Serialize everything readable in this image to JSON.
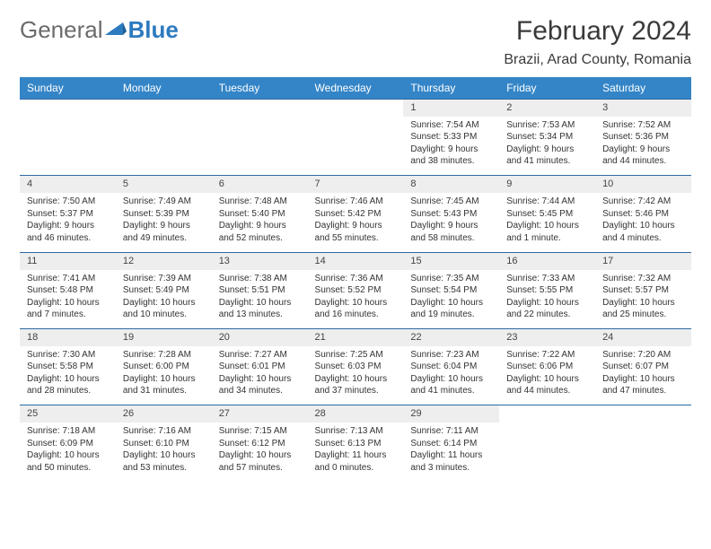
{
  "logo": {
    "part1": "General",
    "part2": "Blue"
  },
  "title": "February 2024",
  "subtitle": "Brazii, Arad County, Romania",
  "colors": {
    "header_bg": "#3485c7",
    "header_text": "#ffffff",
    "daynum_bg": "#eeeeee",
    "border": "#2d6aa3",
    "body_text": "#333333",
    "logo_gray": "#6b6b6b",
    "logo_blue": "#2d7bbf"
  },
  "weekdays": [
    "Sunday",
    "Monday",
    "Tuesday",
    "Wednesday",
    "Thursday",
    "Friday",
    "Saturday"
  ],
  "weeks": [
    {
      "nums": [
        "",
        "",
        "",
        "",
        "1",
        "2",
        "3"
      ],
      "cells": [
        [],
        [],
        [],
        [],
        [
          "Sunrise: 7:54 AM",
          "Sunset: 5:33 PM",
          "Daylight: 9 hours",
          "and 38 minutes."
        ],
        [
          "Sunrise: 7:53 AM",
          "Sunset: 5:34 PM",
          "Daylight: 9 hours",
          "and 41 minutes."
        ],
        [
          "Sunrise: 7:52 AM",
          "Sunset: 5:36 PM",
          "Daylight: 9 hours",
          "and 44 minutes."
        ]
      ]
    },
    {
      "nums": [
        "4",
        "5",
        "6",
        "7",
        "8",
        "9",
        "10"
      ],
      "cells": [
        [
          "Sunrise: 7:50 AM",
          "Sunset: 5:37 PM",
          "Daylight: 9 hours",
          "and 46 minutes."
        ],
        [
          "Sunrise: 7:49 AM",
          "Sunset: 5:39 PM",
          "Daylight: 9 hours",
          "and 49 minutes."
        ],
        [
          "Sunrise: 7:48 AM",
          "Sunset: 5:40 PM",
          "Daylight: 9 hours",
          "and 52 minutes."
        ],
        [
          "Sunrise: 7:46 AM",
          "Sunset: 5:42 PM",
          "Daylight: 9 hours",
          "and 55 minutes."
        ],
        [
          "Sunrise: 7:45 AM",
          "Sunset: 5:43 PM",
          "Daylight: 9 hours",
          "and 58 minutes."
        ],
        [
          "Sunrise: 7:44 AM",
          "Sunset: 5:45 PM",
          "Daylight: 10 hours",
          "and 1 minute."
        ],
        [
          "Sunrise: 7:42 AM",
          "Sunset: 5:46 PM",
          "Daylight: 10 hours",
          "and 4 minutes."
        ]
      ]
    },
    {
      "nums": [
        "11",
        "12",
        "13",
        "14",
        "15",
        "16",
        "17"
      ],
      "cells": [
        [
          "Sunrise: 7:41 AM",
          "Sunset: 5:48 PM",
          "Daylight: 10 hours",
          "and 7 minutes."
        ],
        [
          "Sunrise: 7:39 AM",
          "Sunset: 5:49 PM",
          "Daylight: 10 hours",
          "and 10 minutes."
        ],
        [
          "Sunrise: 7:38 AM",
          "Sunset: 5:51 PM",
          "Daylight: 10 hours",
          "and 13 minutes."
        ],
        [
          "Sunrise: 7:36 AM",
          "Sunset: 5:52 PM",
          "Daylight: 10 hours",
          "and 16 minutes."
        ],
        [
          "Sunrise: 7:35 AM",
          "Sunset: 5:54 PM",
          "Daylight: 10 hours",
          "and 19 minutes."
        ],
        [
          "Sunrise: 7:33 AM",
          "Sunset: 5:55 PM",
          "Daylight: 10 hours",
          "and 22 minutes."
        ],
        [
          "Sunrise: 7:32 AM",
          "Sunset: 5:57 PM",
          "Daylight: 10 hours",
          "and 25 minutes."
        ]
      ]
    },
    {
      "nums": [
        "18",
        "19",
        "20",
        "21",
        "22",
        "23",
        "24"
      ],
      "cells": [
        [
          "Sunrise: 7:30 AM",
          "Sunset: 5:58 PM",
          "Daylight: 10 hours",
          "and 28 minutes."
        ],
        [
          "Sunrise: 7:28 AM",
          "Sunset: 6:00 PM",
          "Daylight: 10 hours",
          "and 31 minutes."
        ],
        [
          "Sunrise: 7:27 AM",
          "Sunset: 6:01 PM",
          "Daylight: 10 hours",
          "and 34 minutes."
        ],
        [
          "Sunrise: 7:25 AM",
          "Sunset: 6:03 PM",
          "Daylight: 10 hours",
          "and 37 minutes."
        ],
        [
          "Sunrise: 7:23 AM",
          "Sunset: 6:04 PM",
          "Daylight: 10 hours",
          "and 41 minutes."
        ],
        [
          "Sunrise: 7:22 AM",
          "Sunset: 6:06 PM",
          "Daylight: 10 hours",
          "and 44 minutes."
        ],
        [
          "Sunrise: 7:20 AM",
          "Sunset: 6:07 PM",
          "Daylight: 10 hours",
          "and 47 minutes."
        ]
      ]
    },
    {
      "nums": [
        "25",
        "26",
        "27",
        "28",
        "29",
        "",
        ""
      ],
      "cells": [
        [
          "Sunrise: 7:18 AM",
          "Sunset: 6:09 PM",
          "Daylight: 10 hours",
          "and 50 minutes."
        ],
        [
          "Sunrise: 7:16 AM",
          "Sunset: 6:10 PM",
          "Daylight: 10 hours",
          "and 53 minutes."
        ],
        [
          "Sunrise: 7:15 AM",
          "Sunset: 6:12 PM",
          "Daylight: 10 hours",
          "and 57 minutes."
        ],
        [
          "Sunrise: 7:13 AM",
          "Sunset: 6:13 PM",
          "Daylight: 11 hours",
          "and 0 minutes."
        ],
        [
          "Sunrise: 7:11 AM",
          "Sunset: 6:14 PM",
          "Daylight: 11 hours",
          "and 3 minutes."
        ],
        [],
        []
      ]
    }
  ]
}
